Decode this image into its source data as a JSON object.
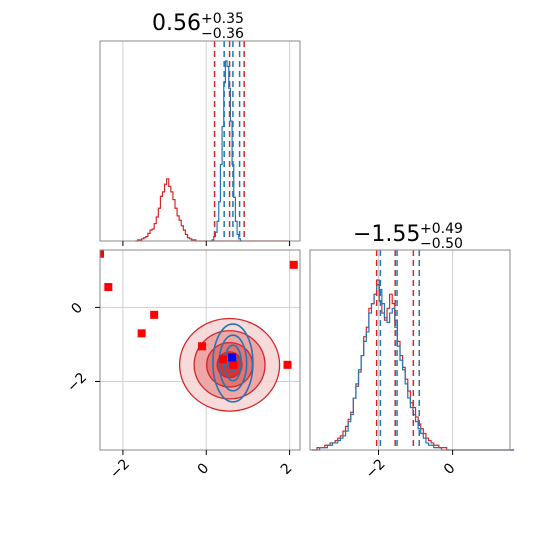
{
  "chart_data": [
    {
      "panel": "marginal-x",
      "type": "histogram",
      "title": {
        "value": "0.56",
        "plus": "+0.35",
        "minus": "−0.36"
      },
      "xlim": [
        -2.55,
        2.25
      ],
      "grid": true,
      "series": [
        {
          "color": "#d62728",
          "bin_start": -1.7,
          "bin_width": 0.05,
          "counts": [
            0,
            1,
            1,
            2,
            3,
            4,
            7,
            10,
            11,
            16,
            22,
            30,
            41,
            45,
            52,
            57,
            50,
            45,
            38,
            30,
            23,
            19,
            14,
            10,
            6,
            3,
            2,
            1,
            1,
            0,
            0,
            0,
            0,
            0,
            0,
            0,
            0,
            0,
            0,
            0,
            0,
            0,
            0,
            0,
            0,
            0,
            0,
            0,
            0,
            0,
            0,
            0,
            0,
            0,
            0,
            0,
            0,
            0,
            0,
            0,
            0,
            0,
            0,
            0,
            0,
            0,
            0,
            0,
            0,
            0,
            0,
            0,
            0,
            0
          ]
        },
        {
          "color": "#1f77b4",
          "bin_start": 0.1,
          "bin_width": 0.04,
          "counts": [
            0,
            1,
            4,
            8,
            18,
            36,
            70,
            105,
            145,
            165,
            160,
            140,
            110,
            70,
            40,
            18,
            6,
            2,
            0
          ]
        }
      ],
      "vlines": [
        {
          "x": 0.2,
          "color": "#d62728"
        },
        {
          "x": 0.56,
          "color": "#d62728"
        },
        {
          "x": 0.91,
          "color": "#d62728"
        },
        {
          "x": 0.43,
          "color": "#1f77b4"
        },
        {
          "x": 0.64,
          "color": "#1f77b4"
        },
        {
          "x": 0.8,
          "color": "#1f77b4"
        }
      ],
      "xticks": [
        -2,
        0,
        2
      ]
    },
    {
      "panel": "joint",
      "type": "scatter",
      "xlim": [
        -2.55,
        2.25
      ],
      "ylim": [
        -3.85,
        1.55
      ],
      "xticks": [
        -2,
        0,
        2
      ],
      "yticks": [
        0,
        -2
      ],
      "grid": true,
      "red_points": [
        {
          "x": -2.55,
          "y": 1.45
        },
        {
          "x": -2.35,
          "y": 0.55
        },
        {
          "x": -1.25,
          "y": -0.2
        },
        {
          "x": -1.55,
          "y": -0.7
        },
        {
          "x": -0.1,
          "y": -1.05
        },
        {
          "x": 0.4,
          "y": -1.4
        },
        {
          "x": 0.65,
          "y": -1.55
        },
        {
          "x": 1.95,
          "y": -1.55
        },
        {
          "x": 2.1,
          "y": 1.15
        }
      ],
      "blue_points": [
        {
          "x": 0.62,
          "y": -1.35
        }
      ],
      "red_contour_center": {
        "x": 0.56,
        "y": -1.55
      },
      "blue_contour_center": {
        "x": 0.64,
        "y": -1.5
      },
      "contour_levels_red": [
        {
          "rx": 1.2,
          "ry": 1.25
        },
        {
          "rx": 0.85,
          "ry": 0.92
        },
        {
          "rx": 0.55,
          "ry": 0.6
        },
        {
          "rx": 0.3,
          "ry": 0.35
        }
      ],
      "contour_levels_blue": [
        {
          "rx": 0.48,
          "ry": 1.05
        },
        {
          "rx": 0.33,
          "ry": 0.75
        },
        {
          "rx": 0.2,
          "ry": 0.48
        },
        {
          "rx": 0.1,
          "ry": 0.22
        }
      ]
    },
    {
      "panel": "marginal-y",
      "type": "histogram",
      "title": {
        "value": "−1.55",
        "plus": "+0.49",
        "minus": "−0.50"
      },
      "xlim": [
        -3.85,
        1.55
      ],
      "grid": true,
      "series": [
        {
          "color": "#d62728",
          "bin_start": -3.8,
          "bin_width": 0.07,
          "counts": [
            0,
            0,
            1,
            1,
            1,
            2,
            2,
            3,
            3,
            4,
            5,
            6,
            8,
            10,
            13,
            16,
            22,
            27,
            33,
            40,
            48,
            52,
            60,
            62,
            66,
            70,
            63,
            58,
            55,
            60,
            66,
            62,
            55,
            46,
            40,
            35,
            30,
            25,
            20,
            18,
            14,
            11,
            9,
            7,
            5,
            4,
            3,
            2,
            2,
            1,
            1,
            1,
            0,
            0,
            0,
            0,
            0,
            0,
            0,
            0,
            0,
            0,
            0,
            0,
            0,
            0,
            0,
            0,
            0,
            0,
            0,
            0,
            0,
            0,
            0,
            0,
            0,
            0
          ]
        },
        {
          "color": "#1f77b4",
          "bin_start": -3.8,
          "bin_width": 0.07,
          "counts": [
            0,
            0,
            0,
            1,
            1,
            1,
            2,
            2,
            3,
            3,
            4,
            5,
            6,
            8,
            12,
            15,
            22,
            28,
            34,
            40,
            46,
            50,
            58,
            62,
            66,
            72,
            68,
            62,
            56,
            54,
            58,
            60,
            52,
            44,
            38,
            34,
            28,
            22,
            18,
            15,
            12,
            9,
            7,
            5,
            3,
            2,
            2,
            1,
            1,
            1,
            0,
            0,
            0,
            0,
            0,
            0,
            0,
            0,
            0,
            0,
            0,
            0,
            0,
            0,
            0,
            0,
            0,
            0,
            0,
            0,
            0,
            0,
            0,
            0,
            0,
            0,
            0,
            0
          ]
        }
      ],
      "vlines": [
        {
          "x": -2.05,
          "color": "#d62728"
        },
        {
          "x": -1.55,
          "color": "#d62728"
        },
        {
          "x": -1.06,
          "color": "#d62728"
        },
        {
          "x": -1.95,
          "color": "#1f77b4"
        },
        {
          "x": -1.5,
          "color": "#1f77b4"
        },
        {
          "x": -0.9,
          "color": "#1f77b4"
        }
      ],
      "xticks": [
        -2,
        0
      ]
    }
  ]
}
